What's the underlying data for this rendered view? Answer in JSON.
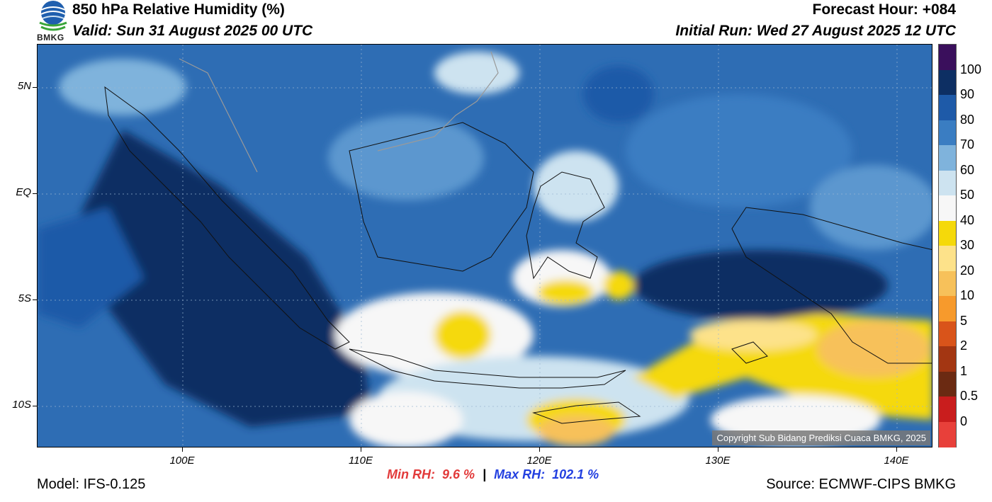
{
  "header": {
    "title": "850 hPa Relative Humidity (%)",
    "valid": "Valid: Sun 31 August 2025 00 UTC",
    "forecast_hour": "Forecast Hour: +084",
    "initial_run": "Initial Run: Wed 27 August 2025 12 UTC"
  },
  "logo": {
    "text": "BMKG",
    "icon": "bmkg-logo-icon"
  },
  "map": {
    "lat_labels": [
      "5N",
      "EQ",
      "5S",
      "10S"
    ],
    "lon_labels": [
      "100E",
      "110E",
      "120E",
      "130E",
      "140E"
    ],
    "copyright": "Copyright Sub Bidang Prediksi Cuaca BMKG, 2025"
  },
  "colorbar": {
    "labels": [
      "100",
      "90",
      "80",
      "70",
      "60",
      "50",
      "40",
      "30",
      "20",
      "10",
      "5",
      "2",
      "1",
      "0.5",
      "0"
    ],
    "colors": [
      "#3a0f5c",
      "#0d2f63",
      "#1e5aa8",
      "#3a7dc2",
      "#7fb3dc",
      "#cde3f0",
      "#f7f7f7",
      "#f5d90a",
      "#fde28a",
      "#f7c15a",
      "#f79a2c",
      "#d9541a",
      "#a33612",
      "#6b2a12",
      "#c91d1d",
      "#e8403a"
    ]
  },
  "stats": {
    "min_label": "Min RH:",
    "min_value": "9.6 %",
    "separator": "|",
    "max_label": "Max RH:",
    "max_value": "102.1 %"
  },
  "footer": {
    "model": "Model: IFS-0.125",
    "source": "Source: ECMWF-CIPS BMKG"
  }
}
